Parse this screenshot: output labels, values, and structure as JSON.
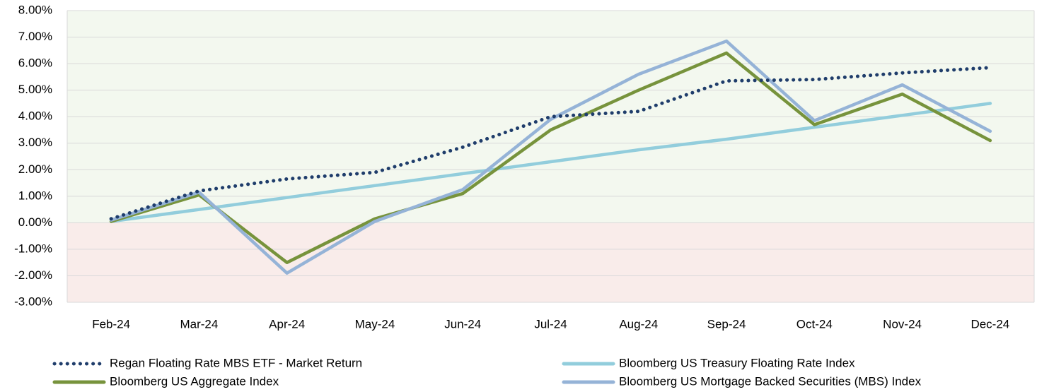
{
  "chart_data": {
    "type": "line",
    "categories": [
      "Feb-24",
      "Mar-24",
      "Apr-24",
      "May-24",
      "Jun-24",
      "Jul-24",
      "Aug-24",
      "Sep-24",
      "Oct-24",
      "Nov-24",
      "Dec-24"
    ],
    "series": [
      {
        "name": "Regan Floating Rate MBS ETF - Market Return",
        "color": "#1f3d6b",
        "style": "dotted",
        "values": [
          0.15,
          1.2,
          1.65,
          1.9,
          2.85,
          4.0,
          4.2,
          5.35,
          5.4,
          5.65,
          5.85
        ]
      },
      {
        "name": "Bloomberg US Treasury Floating Rate Index",
        "color": "#92cddc",
        "style": "solid",
        "values": [
          0.05,
          0.5,
          0.95,
          1.4,
          1.85,
          2.3,
          2.75,
          3.15,
          3.6,
          4.05,
          4.5
        ]
      },
      {
        "name": "Bloomberg US Aggregate Index",
        "color": "#77933c",
        "style": "solid",
        "values": [
          0.05,
          1.05,
          -1.5,
          0.15,
          1.1,
          3.5,
          5.0,
          6.4,
          3.7,
          4.85,
          3.1
        ]
      },
      {
        "name": "Bloomberg US Mortgage Backed Securities (MBS) Index",
        "color": "#95b3d7",
        "style": "solid",
        "values": [
          0.1,
          1.15,
          -1.9,
          0.05,
          1.25,
          3.9,
          5.6,
          6.85,
          3.85,
          5.2,
          3.45
        ]
      }
    ],
    "ylim": [
      -3,
      8
    ],
    "yticks": [
      {
        "value": -3,
        "label": "-3.00%"
      },
      {
        "value": -2,
        "label": "-2.00%"
      },
      {
        "value": -1,
        "label": "-1.00%"
      },
      {
        "value": 0,
        "label": "0.00%"
      },
      {
        "value": 1,
        "label": "1.00%"
      },
      {
        "value": 2,
        "label": "2.00%"
      },
      {
        "value": 3,
        "label": "3.00%"
      },
      {
        "value": 4,
        "label": "4.00%"
      },
      {
        "value": 5,
        "label": "5.00%"
      },
      {
        "value": 6,
        "label": "6.00%"
      },
      {
        "value": 7,
        "label": "7.00%"
      },
      {
        "value": 8,
        "label": "8.00%"
      }
    ],
    "grid": true
  }
}
